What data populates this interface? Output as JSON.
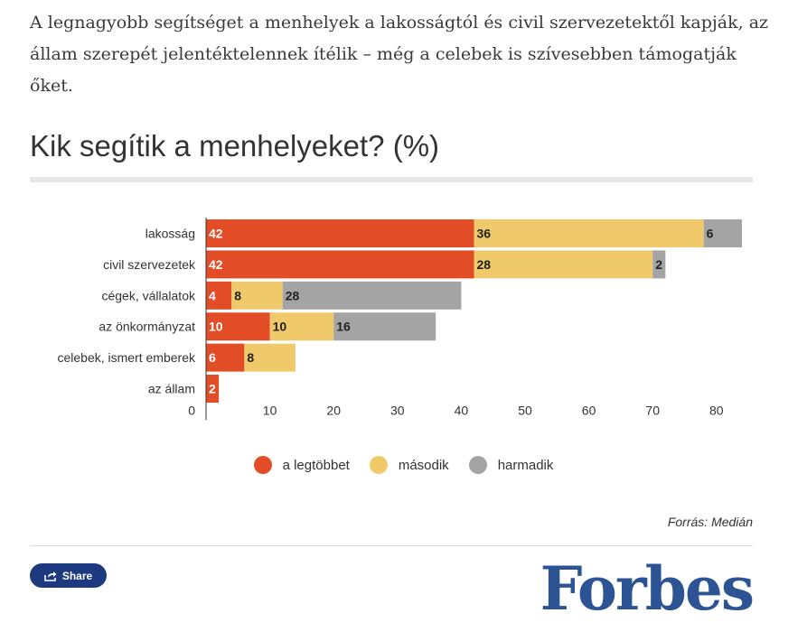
{
  "intro_text": "A legnagyobb segítséget a menhelyek a lakosságtól és civil szervezetektől kapják, az állam szerepét jelentéktelennek ítélik – még a celebek is szívesebben támogatják őket.",
  "chart_data": {
    "type": "bar",
    "orientation": "horizontal",
    "stacked": true,
    "title": "Kik segítik a menhelyeket? (%)",
    "categories": [
      "lakosság",
      "civil szervezetek",
      "cégek, vállalatok",
      "az önkormányzat",
      "celebek, ismert emberek",
      "az állam"
    ],
    "series": [
      {
        "name": "a legtöbbet",
        "color": "#e24c27",
        "values": [
          42,
          42,
          4,
          10,
          6,
          2
        ]
      },
      {
        "name": "második",
        "color": "#f0c96b",
        "values": [
          36,
          28,
          8,
          10,
          8,
          null
        ]
      },
      {
        "name": "harmadik",
        "color": "#a4a4a4",
        "values": [
          6,
          2,
          28,
          16,
          null,
          null
        ]
      }
    ],
    "xlim": [
      0,
      86
    ],
    "xticks": [
      0,
      10,
      20,
      30,
      40,
      50,
      60,
      70,
      80
    ],
    "grid": false,
    "legend_position": "bottom"
  },
  "source": "Forrás: Medián",
  "share_label": "Share",
  "logo_text": "Forbes"
}
